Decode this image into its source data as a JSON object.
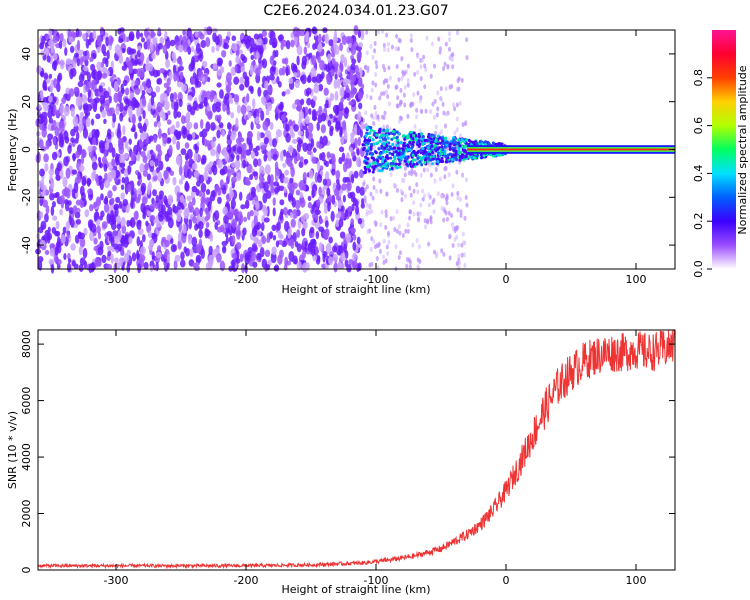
{
  "title": "C2E6.2024.034.01.23.G07",
  "chart_data": [
    {
      "type": "heatmap",
      "xlabel": "Height of straight line (km)",
      "ylabel": "Frequency (Hz)",
      "xlim": [
        -360,
        130
      ],
      "ylim": [
        -50,
        50
      ],
      "x_ticks": [
        -300,
        -200,
        -100,
        0,
        100
      ],
      "y_ticks": [
        -40,
        -20,
        0,
        20,
        40
      ],
      "colorbar": {
        "label": "Normalized spectral amplitude",
        "range": [
          0,
          1
        ],
        "ticks": [
          "0.0",
          "0.2",
          "0.4",
          "0.6",
          "0.8"
        ],
        "tick_values": [
          0,
          0.2,
          0.4,
          0.6,
          0.8
        ],
        "colors": [
          "#ffffff",
          "#9b4dff",
          "#3a00ff",
          "#0060ff",
          "#00e0ff",
          "#00ff60",
          "#b0ff00",
          "#ffd000",
          "#ff4000",
          "#ff0030",
          "#ff1493"
        ]
      },
      "regions": [
        {
          "description_x": [
            -360,
            -110
          ],
          "amplitude": 0.15,
          "kind": "noise"
        },
        {
          "description_x": [
            -110,
            -30
          ],
          "amplitude": 0.45,
          "kind": "transition"
        },
        {
          "description_x": [
            -30,
            130
          ],
          "amplitude": 0.95,
          "kind": "carrier at 0 Hz"
        }
      ]
    },
    {
      "type": "line",
      "xlabel": "Height of straight line (km)",
      "ylabel": "SNR (10 * v/v)",
      "xlim": [
        -360,
        130
      ],
      "ylim": [
        0,
        8500
      ],
      "x_ticks": [
        -300,
        -200,
        -100,
        0,
        100
      ],
      "y_ticks": [
        0,
        2000,
        4000,
        6000,
        8000
      ],
      "color": "#ee3333",
      "series": [
        {
          "x": [
            -360,
            -300,
            -250,
            -200,
            -150,
            -110,
            -90,
            -70,
            -50,
            -40,
            -30,
            -20,
            -10,
            0,
            10,
            20,
            30,
            40,
            50,
            60,
            70,
            80,
            90,
            100,
            110,
            120,
            130
          ],
          "values": [
            150,
            150,
            150,
            150,
            180,
            250,
            350,
            500,
            750,
            1000,
            1250,
            1600,
            2100,
            2800,
            3700,
            4700,
            5700,
            6500,
            7000,
            7400,
            7600,
            7700,
            7700,
            7800,
            7700,
            7800,
            8000
          ]
        }
      ]
    }
  ]
}
